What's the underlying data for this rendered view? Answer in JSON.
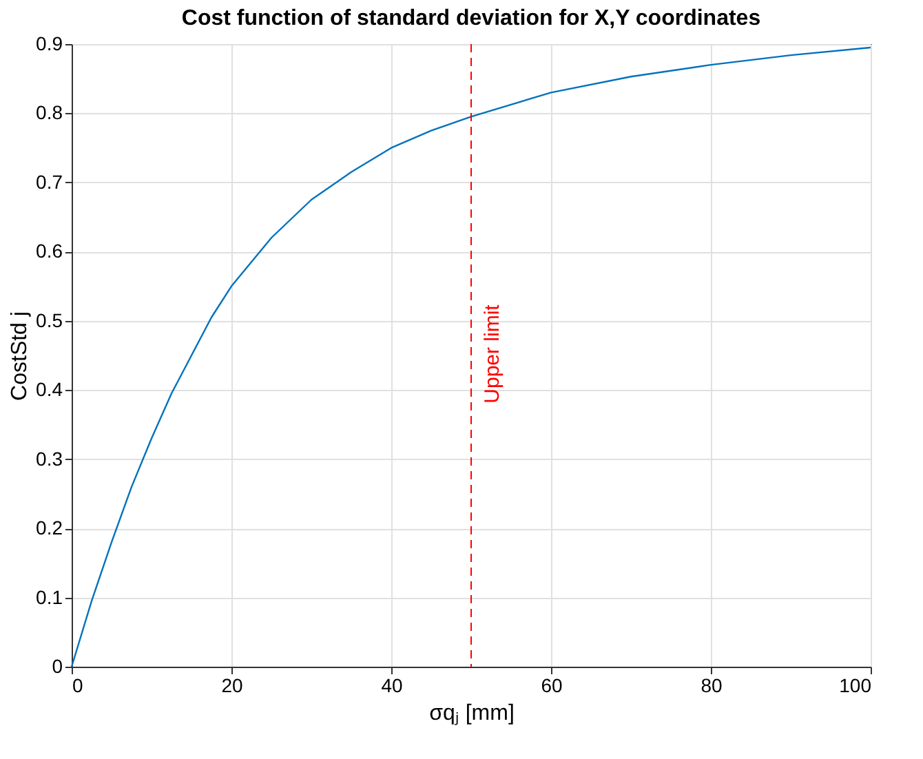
{
  "chart_data": {
    "type": "line",
    "title": "Cost function of standard deviation for X,Y coordinates",
    "xlabel": "σqⱼ [mm]",
    "ylabel": "CostStd j",
    "x": [
      0,
      2.5,
      5,
      7.5,
      10,
      12.5,
      15,
      17.5,
      20,
      25,
      30,
      35,
      40,
      45,
      50,
      60,
      70,
      80,
      90,
      100
    ],
    "series": [
      {
        "color": "#0072bd",
        "values": [
          0,
          0.095,
          0.18,
          0.26,
          0.33,
          0.395,
          0.45,
          0.505,
          0.55,
          0.62,
          0.675,
          0.715,
          0.75,
          0.775,
          0.795,
          0.83,
          0.853,
          0.87,
          0.884,
          0.895
        ]
      }
    ],
    "xlim": [
      0,
      100
    ],
    "xticks": [
      0,
      20,
      40,
      60,
      80,
      100
    ],
    "ylim": [
      0,
      0.9
    ],
    "yticks": [
      0,
      0.1,
      0.2,
      0.3,
      0.4,
      0.5,
      0.6,
      0.7,
      0.8,
      0.9
    ],
    "grid": true,
    "ref_lines": [
      {
        "axis": "x",
        "value": 50,
        "label": "Upper limit",
        "color": "#ff0000",
        "line_style": "dashed"
      }
    ]
  }
}
